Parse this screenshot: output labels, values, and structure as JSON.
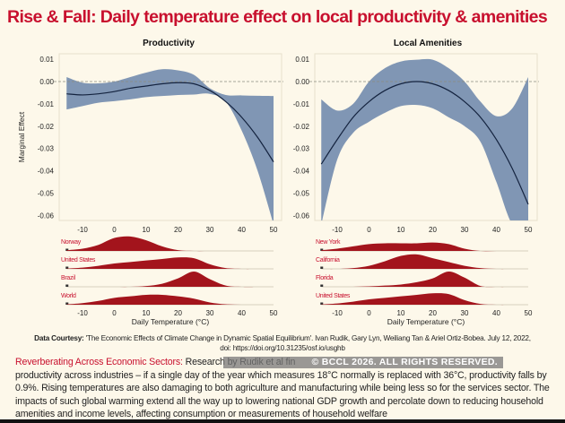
{
  "title": "Rise & Fall: Daily temperature effect on local productivity & amenities",
  "colors": {
    "title": "#c8102e",
    "band": "#8096b4",
    "fit_line": "#14233f",
    "histogram": "#a3141c",
    "background": "#fdf8ea"
  },
  "chart_data": [
    {
      "type": "line",
      "title": "Productivity",
      "ylabel": "Marginal Effect",
      "xlabel": "",
      "xlim": [
        -15,
        50
      ],
      "ylim": [
        -0.06,
        0.01
      ],
      "xticks": [
        "-10",
        "0",
        "10",
        "20",
        "30",
        "40",
        "50"
      ],
      "yticks": [
        "0.01",
        "0.00",
        "-0.01",
        "-0.02",
        "-0.03",
        "-0.04",
        "-0.05",
        "-0.06"
      ],
      "reference_line": 0,
      "x": [
        -15,
        -10,
        -5,
        0,
        5,
        10,
        15,
        20,
        25,
        30,
        35,
        40,
        45,
        50
      ],
      "fit": [
        -0.0055,
        -0.006,
        -0.0055,
        -0.0045,
        -0.003,
        -0.002,
        -0.001,
        -0.0005,
        -0.001,
        -0.004,
        -0.009,
        -0.016,
        -0.025,
        -0.036
      ],
      "upper": [
        0.002,
        -0.0005,
        -0.0008,
        0.0,
        0.002,
        0.004,
        0.0055,
        0.005,
        0.003,
        -0.003,
        -0.006,
        -0.0062,
        -0.0064,
        -0.0065
      ],
      "lower": [
        -0.0125,
        -0.011,
        -0.0095,
        -0.0088,
        -0.008,
        -0.007,
        -0.0065,
        -0.006,
        -0.0058,
        -0.0055,
        -0.009,
        -0.022,
        -0.04,
        -0.064
      ]
    },
    {
      "type": "line",
      "title": "Local Amenities",
      "xlim": [
        -15,
        50
      ],
      "ylim": [
        -0.06,
        0.01
      ],
      "xticks": [
        "-10",
        "0",
        "10",
        "20",
        "30",
        "40",
        "50"
      ],
      "yticks": [
        "0.01",
        "0.00",
        "-0.01",
        "-0.02",
        "-0.03",
        "-0.04",
        "-0.05",
        "-0.06"
      ],
      "reference_line": 0,
      "x": [
        -15,
        -10,
        -5,
        0,
        5,
        10,
        15,
        20,
        25,
        30,
        35,
        40,
        45,
        50
      ],
      "fit": [
        -0.037,
        -0.026,
        -0.016,
        -0.009,
        -0.004,
        -0.001,
        0.0,
        -0.001,
        -0.004,
        -0.009,
        -0.016,
        -0.026,
        -0.039,
        -0.055
      ],
      "upper": [
        -0.008,
        -0.013,
        -0.01,
        0.0,
        0.006,
        0.009,
        0.0098,
        0.0098,
        0.006,
        0.0,
        -0.009,
        -0.0155,
        -0.012,
        0.002
      ],
      "lower": [
        -0.064,
        -0.035,
        -0.023,
        -0.018,
        -0.014,
        -0.011,
        -0.0105,
        -0.012,
        -0.016,
        -0.02,
        -0.027,
        -0.045,
        -0.064,
        -0.066
      ]
    },
    {
      "type": "area",
      "title": "",
      "xlabel": "Daily Temperature (°C)",
      "xlim": [
        -15,
        50
      ],
      "xticks": [
        "-10",
        "0",
        "10",
        "20",
        "30",
        "40",
        "50"
      ],
      "x": [
        -15,
        -10,
        -5,
        0,
        5,
        10,
        15,
        20,
        25,
        30,
        35,
        40,
        45
      ],
      "series": [
        {
          "name": "Norway",
          "values": [
            0.05,
            0.15,
            0.4,
            0.85,
            0.95,
            0.7,
            0.3,
            0.05,
            0,
            0,
            0,
            0,
            0
          ]
        },
        {
          "name": "United States",
          "values": [
            0.02,
            0.08,
            0.2,
            0.35,
            0.45,
            0.55,
            0.65,
            0.75,
            0.7,
            0.3,
            0.05,
            0,
            0
          ]
        },
        {
          "name": "Brazil",
          "values": [
            0,
            0,
            0,
            0,
            0,
            0.05,
            0.2,
            0.55,
            1,
            0.5,
            0.08,
            0,
            0
          ]
        },
        {
          "name": "World",
          "values": [
            0.02,
            0.1,
            0.25,
            0.45,
            0.55,
            0.65,
            0.65,
            0.55,
            0.4,
            0.15,
            0.03,
            0,
            0
          ]
        }
      ]
    },
    {
      "type": "area",
      "title": "",
      "xlabel": "Daily Temperature (°C)",
      "xlim": [
        -15,
        50
      ],
      "xticks": [
        "-10",
        "0",
        "10",
        "20",
        "30",
        "40",
        "50"
      ],
      "x": [
        -15,
        -10,
        -5,
        0,
        5,
        10,
        15,
        20,
        25,
        30,
        35,
        40,
        45
      ],
      "series": [
        {
          "name": "New York",
          "values": [
            0.05,
            0.15,
            0.3,
            0.45,
            0.5,
            0.5,
            0.5,
            0.55,
            0.45,
            0.15,
            0,
            0,
            0
          ]
        },
        {
          "name": "California",
          "values": [
            0,
            0,
            0.05,
            0.2,
            0.5,
            0.85,
            0.95,
            0.7,
            0.45,
            0.2,
            0.05,
            0,
            0
          ]
        },
        {
          "name": "Florida",
          "values": [
            0,
            0,
            0,
            0.03,
            0.08,
            0.15,
            0.3,
            0.55,
            1,
            0.6,
            0.05,
            0,
            0
          ]
        },
        {
          "name": "United States",
          "values": [
            0.02,
            0.08,
            0.2,
            0.35,
            0.45,
            0.55,
            0.65,
            0.75,
            0.7,
            0.3,
            0.05,
            0,
            0
          ]
        }
      ]
    }
  ],
  "credit": {
    "label": "Data Courtesy:",
    "line1": "'The Economic Effects of Climate Change in Dynamic Spatial Equilibrium'. Ivan Rudik, Gary Lyn, Weiliang Tan & Ariel Ortiz-Bobea. July 12, 2022,",
    "line2": "doi: https://doi.org/10.31235/osf.io/usghb"
  },
  "paragraph": {
    "lead": "Reverberating Across Economic Sectors:",
    "line1": " Research by Rudik et al fin",
    "body": "productivity across industries – if a single day of the year which measures 18°C normally is replaced with 36°C, productivity falls by 0.9%. Rising temperatures are also damaging to both agriculture and manufacturing while being less so for the services sector. The impacts of such global warming extend all the way up to lowering national GDP growth and percolate down to reducing household amenities and income levels, affecting consumption or measurements of household welfare"
  },
  "watermark": "© BCCL 2026. ALL RIGHTS RESERVED."
}
